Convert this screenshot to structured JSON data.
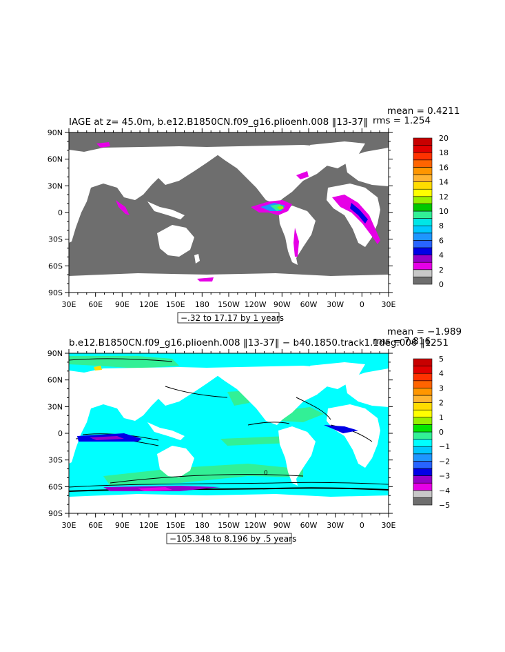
{
  "colors": {
    "land": "#ffffff",
    "grey": "#6e6e6e",
    "frame": "#000000"
  },
  "chart_data": [
    {
      "type": "heatmap",
      "title": "IAGE at z=  45.0m, b.e12.B1850CN.f09_g16.plioenh.008 ‖13-37‖",
      "stats": {
        "mean": "mean = 0.4211",
        "rms": "rms = 1.254"
      },
      "range_label": "−.32 to 17.17 by 1 years",
      "xlim": [
        30,
        390
      ],
      "ylim": [
        -90,
        90
      ],
      "x_ticks": [
        "30E",
        "60E",
        "90E",
        "120E",
        "150E",
        "180",
        "150W",
        "120W",
        "90W",
        "60W",
        "30W",
        "0",
        "30E"
      ],
      "y_ticks": [
        "90N",
        "60N",
        "30N",
        "0",
        "30S",
        "60S",
        "90S"
      ],
      "colorbar": {
        "labels": [
          "0",
          "2",
          "4",
          "6",
          "8",
          "10",
          "12",
          "14",
          "16",
          "18",
          "20"
        ],
        "colors": [
          "#6e6e6e",
          "#c8c8c8",
          "#e600e6",
          "#9600c8",
          "#0000e6",
          "#2864ff",
          "#1e96ff",
          "#00c8ff",
          "#00e6e6",
          "#32f096",
          "#00c800",
          "#96f000",
          "#ffff00",
          "#ffdc00",
          "#ffb432",
          "#ff9600",
          "#ff6400",
          "#ff3200",
          "#e10000",
          "#c80000"
        ]
      }
    },
    {
      "type": "heatmap",
      "title": "b.e12.B1850CN.f09_g16.plioenh.008 ‖13-37‖ − b40.1850.track1.1deg.006 ‖1251",
      "stats": {
        "mean": "mean = −1.989",
        "rms": "rms = 7.816"
      },
      "range_label": "−105.348 to 8.196 by .5 years",
      "contour_label": "0",
      "xlim": [
        30,
        390
      ],
      "ylim": [
        -90,
        90
      ],
      "x_ticks": [
        "30E",
        "60E",
        "90E",
        "120E",
        "150E",
        "180",
        "150W",
        "120W",
        "90W",
        "60W",
        "30W",
        "0",
        "30E"
      ],
      "y_ticks": [
        "90N",
        "60N",
        "30N",
        "0",
        "30S",
        "60S",
        "90S"
      ],
      "colorbar": {
        "labels": [
          "−5",
          "−4",
          "−3",
          "−2",
          "−1",
          "0",
          "1",
          "2",
          "3",
          "4",
          "5"
        ],
        "colors": [
          "#6e6e6e",
          "#c8c8c8",
          "#e600e6",
          "#9600c8",
          "#0000e6",
          "#2864ff",
          "#1e96ff",
          "#00c8ff",
          "#00ffff",
          "#32f096",
          "#00e600",
          "#96f000",
          "#ffff00",
          "#ffdc00",
          "#ffb432",
          "#ff9600",
          "#ff6400",
          "#ff3200",
          "#e10000",
          "#c80000"
        ]
      }
    }
  ]
}
